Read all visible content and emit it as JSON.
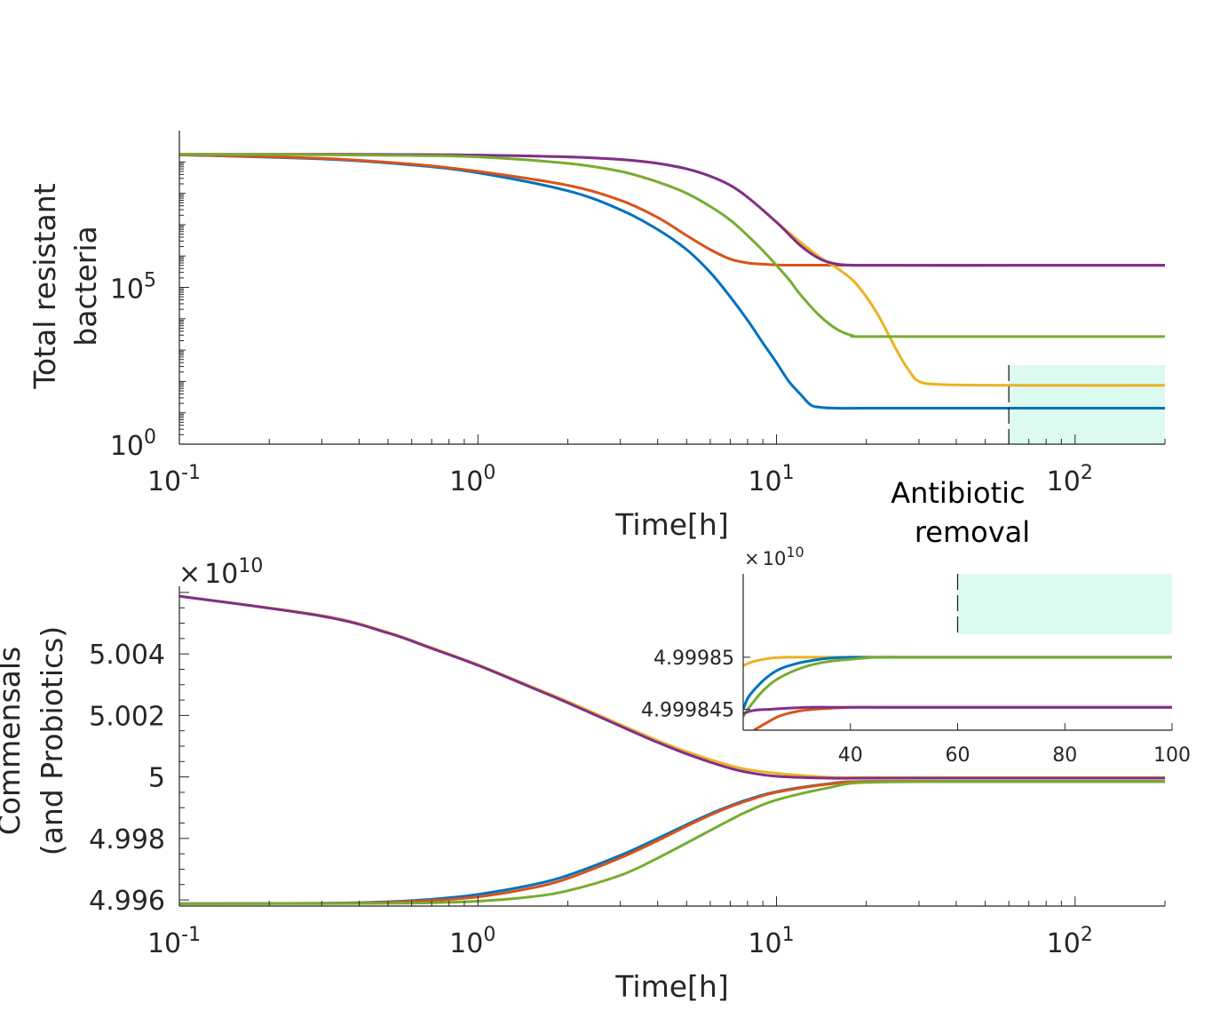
{
  "chart_data": [
    {
      "id": "top",
      "type": "line",
      "xscale": "log",
      "yscale": "log",
      "xlim": [
        0.1,
        200
      ],
      "ylim": [
        1,
        10000000000.0
      ],
      "xlabel": "Time[h]",
      "ylabel": [
        "Total resistant",
        "bacteria"
      ],
      "xtick_labels": [
        {
          "base": "10",
          "exp": "-1"
        },
        {
          "base": "10",
          "exp": "0"
        },
        {
          "base": "10",
          "exp": "1"
        },
        {
          "base": "10",
          "exp": "2"
        }
      ],
      "ytick_labels": [
        {
          "base": "10",
          "exp": "0"
        },
        {
          "base": "10",
          "exp": "5"
        }
      ],
      "shaded_region": {
        "x": [
          60,
          200
        ],
        "color": "#dcfaf0"
      },
      "annotation": [
        "Antibiotic",
        "removal"
      ],
      "series": [
        {
          "color": "#0072BD",
          "x": [
            0.1,
            0.3,
            0.6,
            1,
            2,
            3,
            4,
            5,
            6,
            7,
            8,
            9,
            10,
            11,
            12,
            13,
            14,
            16,
            20,
            60,
            200
          ],
          "y": [
            1700000000.0,
            1250000000.0,
            800000000.0,
            450000000.0,
            120000000.0,
            30000000.0,
            7000000.0,
            1600000.0,
            300000.0,
            50000.0,
            9000,
            1700,
            400,
            100,
            40,
            18,
            15,
            14,
            14,
            14,
            14
          ]
        },
        {
          "color": "#D95319",
          "x": [
            0.1,
            0.3,
            0.6,
            1,
            2,
            3,
            4,
            5,
            6,
            7,
            8,
            9,
            10,
            12,
            15,
            20,
            60,
            200
          ],
          "y": [
            1700000000.0,
            1300000000.0,
            850000000.0,
            500000000.0,
            180000000.0,
            60000000.0,
            17000000.0,
            4500000.0,
            1600000.0,
            800000.0,
            600000.0,
            550000.0,
            520000.0,
            510000.0,
            510000.0,
            510000.0,
            510000.0,
            510000.0
          ]
        },
        {
          "color": "#EDB120",
          "x": [
            0.1,
            0.3,
            0.6,
            1,
            2,
            3,
            4,
            5,
            6,
            7,
            8,
            10,
            12,
            14,
            16,
            18,
            20,
            22,
            24,
            26,
            28,
            30,
            35,
            60,
            200
          ],
          "y": [
            1750000000.0,
            1750000000.0,
            1720000000.0,
            1650000000.0,
            1450000000.0,
            1200000000.0,
            900000000.0,
            600000000.0,
            350000000.0,
            180000000.0,
            75000000.0,
            12000000.0,
            2800000.0,
            900000.0,
            400000.0,
            170000.0,
            50000.0,
            12000.0,
            2500,
            600,
            200,
            100,
            80,
            75,
            75
          ]
        },
        {
          "color": "#7E2F8E",
          "x": [
            0.1,
            0.3,
            0.6,
            1,
            2,
            3,
            4,
            5,
            6,
            7,
            8,
            10,
            12,
            14,
            16,
            18,
            20,
            60,
            200
          ],
          "y": [
            1750000000.0,
            1750000000.0,
            1720000000.0,
            1650000000.0,
            1450000000.0,
            1200000000.0,
            900000000.0,
            600000000.0,
            350000000.0,
            180000000.0,
            75000000.0,
            12000000.0,
            2200000.0,
            800000.0,
            550000.0,
            510000.0,
            500000.0,
            500000.0,
            500000.0
          ]
        },
        {
          "color": "#77AC30",
          "x": [
            0.1,
            0.3,
            0.6,
            1,
            2,
            3,
            4,
            5,
            6,
            7,
            8,
            9,
            10,
            11,
            12,
            14,
            16,
            18,
            20,
            60,
            200
          ],
          "y": [
            1750000000.0,
            1700000000.0,
            1600000000.0,
            1450000000.0,
            900000000.0,
            500000000.0,
            230000000.0,
            100000000.0,
            38000000.0,
            14000000.0,
            4500000.0,
            1500000.0,
            500000.0,
            180000.0,
            60000.0,
            12000.0,
            4500,
            2900,
            2700,
            2700,
            2700
          ]
        }
      ]
    },
    {
      "id": "bottom",
      "type": "line",
      "xscale": "log",
      "xlim": [
        0.1,
        200
      ],
      "ylim": [
        4.9958,
        5.0062
      ],
      "xlabel": "Time[h]",
      "ylabel": [
        "Commensals",
        "(and Probiotics)"
      ],
      "multiplier": {
        "prefix": "×",
        "base": "10",
        "exp": "10"
      },
      "xtick_labels": [
        {
          "base": "10",
          "exp": "-1"
        },
        {
          "base": "10",
          "exp": "0"
        },
        {
          "base": "10",
          "exp": "1"
        },
        {
          "base": "10",
          "exp": "2"
        }
      ],
      "ytick_labels": [
        "4.996",
        "4.998",
        "5",
        "5.002",
        "5.004"
      ],
      "series": [
        {
          "color": "#EDB120",
          "x": [
            0.1,
            0.3,
            0.5,
            0.7,
            1,
            1.5,
            2,
            3,
            4,
            5,
            6,
            7,
            8,
            10,
            15,
            20,
            50,
            200
          ],
          "y": [
            5.00588,
            5.00525,
            5.0047,
            5.0042,
            5.00365,
            5.00295,
            5.00245,
            5.0017,
            5.00118,
            5.00082,
            5.00056,
            5.00037,
            5.00024,
            5.00012,
            4.99999,
            4.99998,
            4.99998,
            4.99998
          ]
        },
        {
          "color": "#7E2F8E",
          "x": [
            0.1,
            0.3,
            0.5,
            0.7,
            1,
            1.5,
            2,
            3,
            4,
            5,
            6,
            7,
            8,
            10,
            15,
            20,
            50,
            200
          ],
          "y": [
            5.00588,
            5.00523,
            5.00468,
            5.00418,
            5.00363,
            5.00292,
            5.00241,
            5.00165,
            5.00112,
            5.00075,
            5.00048,
            5.00028,
            5.00015,
            5.00002,
            4.99996,
            4.99996,
            4.99996,
            4.99996
          ]
        },
        {
          "color": "#0072BD",
          "x": [
            0.1,
            0.3,
            0.5,
            0.7,
            1,
            1.5,
            2,
            3,
            4,
            5,
            6,
            7,
            8,
            10,
            15,
            20,
            50,
            200
          ],
          "y": [
            4.99588,
            4.99589,
            4.99594,
            4.99602,
            4.99618,
            4.99648,
            4.9968,
            4.99745,
            4.998,
            4.99845,
            4.9988,
            4.99906,
            4.99926,
            4.99952,
            4.99978,
            4.99985,
            4.99985,
            4.99985
          ]
        },
        {
          "color": "#D95319",
          "x": [
            0.1,
            0.3,
            0.5,
            0.7,
            1,
            1.5,
            2,
            3,
            4,
            5,
            6,
            7,
            8,
            10,
            15,
            20,
            50,
            200
          ],
          "y": [
            4.99588,
            4.99589,
            4.99592,
            4.99598,
            4.9961,
            4.99638,
            4.9967,
            4.99737,
            4.99793,
            4.9984,
            4.99876,
            4.99903,
            4.99923,
            4.9995,
            4.99977,
            4.99985,
            4.99985,
            4.99985
          ]
        },
        {
          "color": "#77AC30",
          "x": [
            0.1,
            0.3,
            0.5,
            0.7,
            1,
            1.5,
            2,
            3,
            4,
            5,
            6,
            7,
            8,
            10,
            15,
            20,
            50,
            200
          ],
          "y": [
            4.99588,
            4.99588,
            4.99589,
            4.99591,
            4.99596,
            4.9961,
            4.9963,
            4.9968,
            4.99736,
            4.99785,
            4.99826,
            4.9986,
            4.99888,
            4.99925,
            4.99965,
            4.99982,
            4.99985,
            4.99985
          ]
        }
      ]
    },
    {
      "id": "inset",
      "type": "line",
      "xscale": "linear",
      "xlim": [
        20,
        100
      ],
      "ylim": [
        4.999843,
        4.999858
      ],
      "multiplier": {
        "prefix": "×",
        "base": "10",
        "exp": "10"
      },
      "xticks": [
        40,
        60,
        80,
        100
      ],
      "ytick_labels": [
        {
          "value": 4.999845,
          "label": "4.999845"
        },
        {
          "value": 4.99985,
          "label": "4.99985"
        }
      ],
      "shaded_region": {
        "x": [
          60,
          100
        ],
        "y": [
          4.9998522,
          4.999858
        ],
        "color": "#dcfaf0"
      },
      "series": [
        {
          "color": "#EDB120",
          "x": [
            20,
            22,
            25,
            28,
            32,
            36,
            40,
            45,
            50,
            100
          ],
          "y": [
            4.9998492,
            4.9998496,
            4.9998499,
            4.99985,
            4.99985,
            4.99985,
            4.99985,
            4.99985,
            4.99985,
            4.99985
          ]
        },
        {
          "color": "#0072BD",
          "x": [
            20,
            21,
            23,
            25,
            27,
            30,
            33,
            36,
            40,
            45,
            50,
            55,
            100
          ],
          "y": [
            4.999845,
            4.9998462,
            4.9998474,
            4.9998483,
            4.9998489,
            4.9998494,
            4.9998497,
            4.9998499,
            4.99985,
            4.99985,
            4.99985,
            4.99985,
            4.99985
          ]
        },
        {
          "color": "#77AC30",
          "x": [
            20,
            21,
            23,
            25,
            27,
            30,
            33,
            36,
            40,
            45,
            50,
            55,
            60,
            100
          ],
          "y": [
            4.9998443,
            4.9998451,
            4.9998464,
            4.9998474,
            4.9998481,
            4.9998488,
            4.9998493,
            4.9998496,
            4.9998498,
            4.99985,
            4.99985,
            4.99985,
            4.99985,
            4.99985
          ]
        },
        {
          "color": "#D95319",
          "x": [
            22,
            23,
            25,
            27,
            30,
            33,
            36,
            40,
            45,
            50,
            60,
            100
          ],
          "y": [
            4.999843,
            4.9998433,
            4.9998439,
            4.9998444,
            4.9998448,
            4.999845,
            4.9998451,
            4.9998452,
            4.9998452,
            4.9998452,
            4.9998452,
            4.9998452
          ]
        },
        {
          "color": "#7E2F8E",
          "x": [
            20,
            22,
            25,
            28,
            32,
            36,
            40,
            45,
            50,
            60,
            100
          ],
          "y": [
            4.9998446,
            4.9998449,
            4.999845,
            4.9998451,
            4.9998452,
            4.9998452,
            4.9998452,
            4.9998452,
            4.9998452,
            4.9998452,
            4.9998452
          ]
        }
      ]
    }
  ]
}
